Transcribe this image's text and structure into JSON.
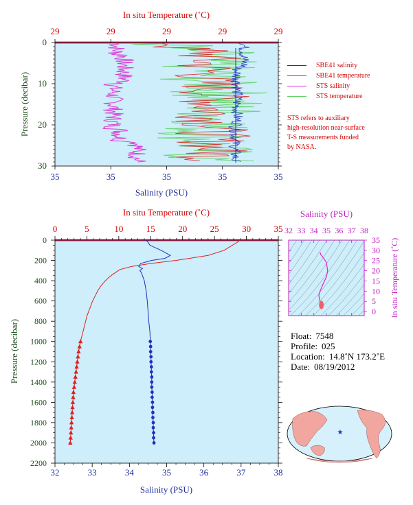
{
  "upper_chart": {
    "temp_axis_title": "In situ Temperature (˚C)",
    "temp_ticks": [
      "29",
      "29",
      "29",
      "29",
      "29"
    ],
    "salinity_axis_title": "Salinity (PSU)",
    "salinity_ticks": [
      "35",
      "35",
      "35",
      "35",
      "35"
    ],
    "pressure_axis_title": "Pressure (decibar)",
    "pressure_ticks": [
      "0",
      "10",
      "20",
      "30"
    ]
  },
  "legend": {
    "items": [
      {
        "label": "SBE41 salinity",
        "color": "#1f2fbf"
      },
      {
        "label": "SBE41 temperature",
        "color": "#e02020"
      },
      {
        "label": "STS salinity",
        "color": "#e020d0"
      },
      {
        "label": "STS temperature",
        "color": "#5fd05f"
      }
    ],
    "note_lines": [
      "STS refers to auxiliary",
      "high-resolution near-surface",
      "T-S measurements funded",
      "by NASA."
    ]
  },
  "main_chart": {
    "temp_axis_title": "In situ Temperature (˚C)",
    "temp_ticks": [
      "0",
      "5",
      "10",
      "15",
      "20",
      "25",
      "30",
      "35"
    ],
    "salinity_axis_title": "Salinity (PSU)",
    "salinity_ticks": [
      "32",
      "33",
      "34",
      "35",
      "36",
      "37",
      "38"
    ],
    "pressure_axis_title": "Pressure (decibar)",
    "pressure_ticks": [
      "0",
      "200",
      "400",
      "600",
      "800",
      "1000",
      "1200",
      "1400",
      "1600",
      "1800",
      "2000",
      "2200"
    ]
  },
  "ts_chart": {
    "salinity_axis_title": "Salinity (PSU)",
    "salinity_ticks": [
      "32",
      "33",
      "34",
      "35",
      "36",
      "37",
      "38"
    ],
    "temp_axis_title": "In situ Temperature (˚C)",
    "temp_ticks": [
      "0",
      "5",
      "10",
      "15",
      "20",
      "25",
      "30",
      "35"
    ]
  },
  "float_info": {
    "float_label": "Float:",
    "float_value": "7548",
    "profile_label": "Profile:",
    "profile_value": "025",
    "location_label": "Location:",
    "location_value": "14.8˚N  173.2˚E",
    "date_label": "Date:",
    "date_value": "08/19/2012"
  },
  "colors": {
    "temperature": "#e02020",
    "salinity": "#1f2fbf",
    "sts_salinity": "#e020d0",
    "sts_temperature": "#5fd05f",
    "plot_bg": "#cdeefa",
    "axis_temp": "#d40000",
    "axis_sal": "#1f2f9f",
    "axis_pres": "#1f4f1f",
    "ts_axis": "#c020c0"
  },
  "chart_data": [
    {
      "type": "line",
      "title": "",
      "xlabel": "In situ Temperature (˚C)",
      "x2label": "Salinity (PSU)",
      "ylabel": "Pressure (decibar)",
      "ylim": [
        0,
        30
      ],
      "y_inverted": true,
      "series": [
        {
          "name": "SBE41 salinity",
          "color": "#1f2fbf"
        },
        {
          "name": "SBE41 temperature",
          "color": "#e02020"
        },
        {
          "name": "STS salinity",
          "color": "#e020d0"
        },
        {
          "name": "STS temperature",
          "color": "#5fd05f"
        }
      ]
    },
    {
      "type": "line",
      "title": "",
      "xlabel": "Salinity (PSU)",
      "x2label": "In situ Temperature (˚C)",
      "ylabel": "Pressure (decibar)",
      "salinity_range": [
        32,
        38
      ],
      "temperature_range": [
        0,
        35
      ],
      "ylim": [
        0,
        2200
      ],
      "y_inverted": true,
      "series": [
        {
          "name": "SBE41 temperature",
          "color": "#e02020",
          "pressure": [
            0,
            20,
            50,
            100,
            150,
            200,
            230,
            260,
            290,
            310,
            340,
            370,
            400,
            450,
            500,
            550,
            600,
            650,
            700,
            750,
            800,
            850,
            900,
            950,
            1000,
            1050,
            1100,
            1150,
            1200,
            1250,
            1300,
            1350,
            1400,
            1450,
            1500,
            1550,
            1600,
            1650,
            1700,
            1750,
            1800,
            1850,
            1900,
            1950,
            2000
          ],
          "values": [
            29,
            28.6,
            27.8,
            26.5,
            24.0,
            19.0,
            15.0,
            12.0,
            10.2,
            9.7,
            9.0,
            8.4,
            7.9,
            7.2,
            6.7,
            6.3,
            5.9,
            5.6,
            5.3,
            5.0,
            4.8,
            4.6,
            4.4,
            4.2,
            4.0,
            3.85,
            3.7,
            3.6,
            3.5,
            3.4,
            3.3,
            3.2,
            3.1,
            3.0,
            2.9,
            2.85,
            2.8,
            2.75,
            2.7,
            2.65,
            2.6,
            2.55,
            2.5,
            2.45,
            2.4
          ],
          "markers_from_pressure": 1000
        },
        {
          "name": "SBE41 salinity",
          "color": "#1f2fbf",
          "pressure": [
            0,
            20,
            50,
            100,
            150,
            180,
            200,
            230,
            260,
            280,
            300,
            320,
            350,
            400,
            500,
            600,
            700,
            800,
            900,
            1000,
            1050,
            1100,
            1150,
            1200,
            1250,
            1300,
            1350,
            1400,
            1450,
            1500,
            1550,
            1600,
            1650,
            1700,
            1750,
            1800,
            1850,
            1900,
            1950,
            2000
          ],
          "values": [
            34.45,
            34.5,
            34.55,
            34.85,
            35.1,
            34.95,
            34.6,
            34.3,
            34.25,
            34.35,
            34.28,
            34.32,
            34.35,
            34.4,
            34.45,
            34.48,
            34.5,
            34.52,
            34.55,
            34.56,
            34.57,
            34.57,
            34.58,
            34.58,
            34.59,
            34.59,
            34.6,
            34.6,
            34.6,
            34.61,
            34.61,
            34.62,
            34.62,
            34.63,
            34.63,
            34.64,
            34.64,
            34.65,
            34.65,
            34.66
          ],
          "markers_from_pressure": 1000
        }
      ]
    },
    {
      "type": "line",
      "title": "",
      "xlabel": "Salinity (PSU)",
      "ylabel": "In situ Temperature (˚C)",
      "xlim": [
        32,
        38
      ],
      "ylim": [
        -2,
        35
      ],
      "series": [
        {
          "name": "T-S",
          "color": "#e020d0",
          "salinity": [
            34.5,
            34.55,
            34.8,
            35.0,
            35.1,
            35.0,
            34.7,
            34.5,
            34.4,
            34.45,
            34.5,
            34.55,
            34.58,
            34.6,
            34.62
          ],
          "temperature": [
            29,
            28,
            26,
            24,
            20,
            17,
            13,
            10,
            8,
            6,
            5,
            4,
            3.5,
            3,
            2.5
          ]
        }
      ]
    }
  ]
}
